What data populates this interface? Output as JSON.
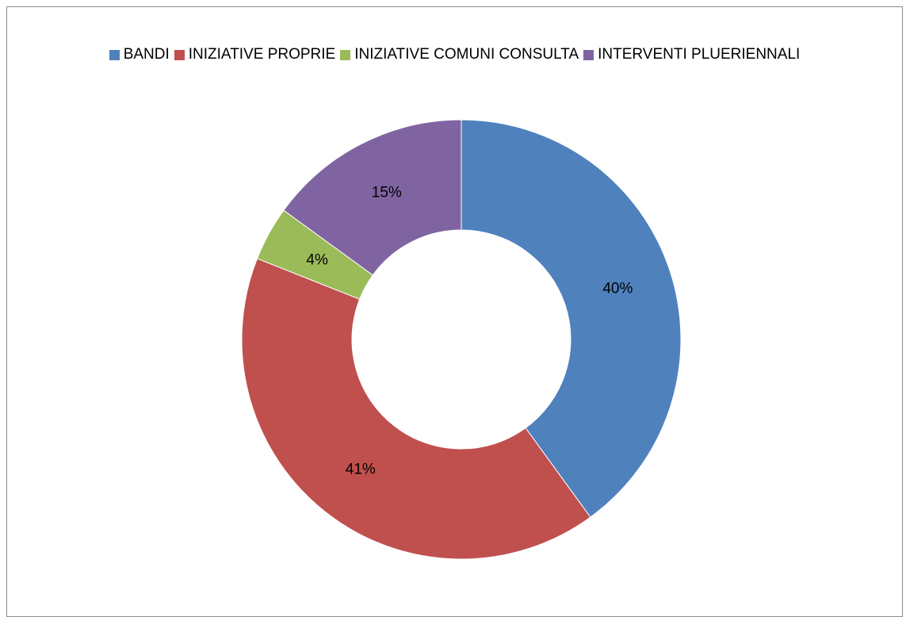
{
  "chart_data": {
    "type": "pie",
    "variant": "doughnut",
    "title": "",
    "categories": [
      "BANDI",
      "INIZIATIVE PROPRIE",
      "INIZIATIVE COMUNI CONSULTA",
      "INTERVENTI PLUERIENNALI"
    ],
    "values": [
      40,
      41,
      4,
      15
    ],
    "labels": [
      "40%",
      "41%",
      "4%",
      "15%"
    ],
    "colors": [
      "#4f81bd",
      "#c0504d",
      "#9bbb59",
      "#8064a2"
    ],
    "legend_position": "top",
    "start_angle": "12 o'clock",
    "direction": "clockwise"
  }
}
